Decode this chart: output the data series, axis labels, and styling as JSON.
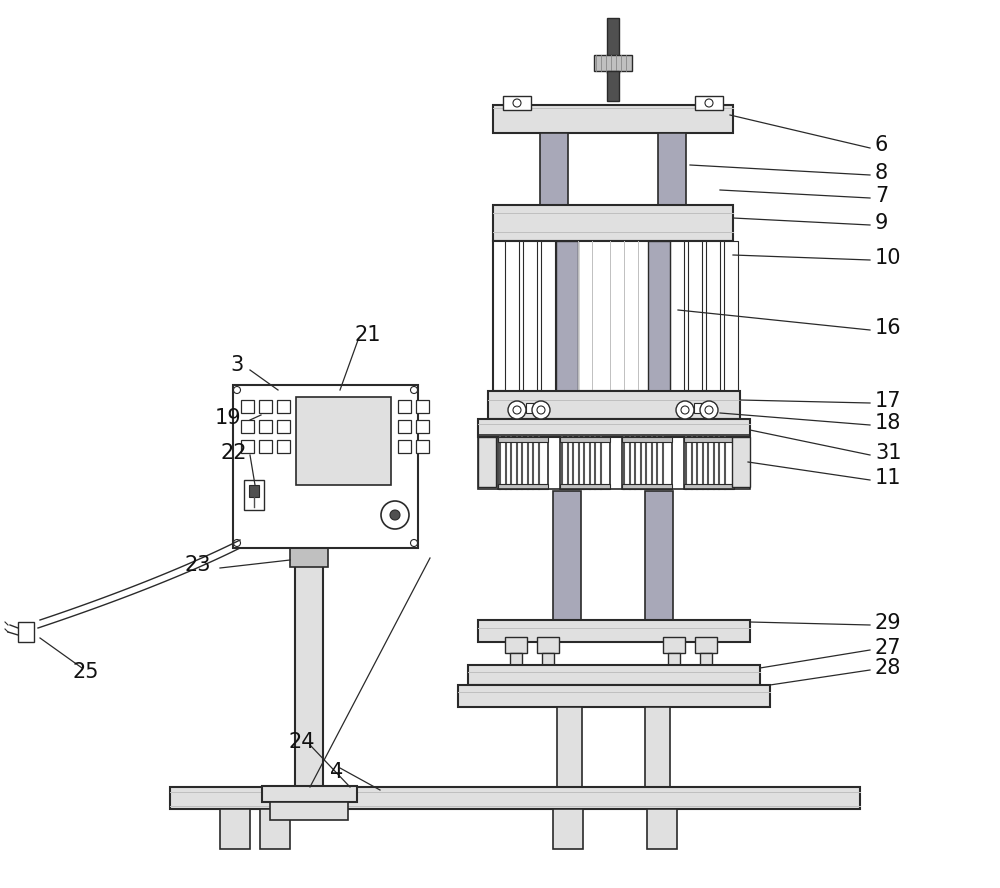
{
  "bg_color": "#ffffff",
  "line_color": "#2a2a2a",
  "gray_fill": "#a8a8b8",
  "light_gray": "#e0e0e0",
  "mid_gray": "#c0c0c0",
  "dark_gray": "#505050",
  "roller_dark": "#303030",
  "figsize": [
    10.0,
    8.88
  ],
  "dpi": 100,
  "label_fontsize": 15,
  "label_color": "#111111"
}
